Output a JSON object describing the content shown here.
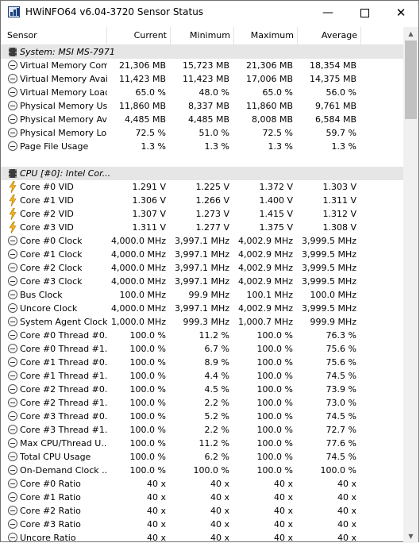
{
  "window": {
    "title": "HWiNFO64 v6.04-3720 Sensor Status",
    "minimize_glyph": "—",
    "close_glyph": "✕"
  },
  "columns": {
    "sensor": "Sensor",
    "current": "Current",
    "minimum": "Minimum",
    "maximum": "Maximum",
    "average": "Average"
  },
  "scroll_position_fraction": 0.0,
  "rows": [
    {
      "kind": "group",
      "icon": "chip-icon",
      "name": "System: MSI MS-7971"
    },
    {
      "kind": "sensor",
      "icon": "gauge-icon",
      "name": "Virtual Memory Com...",
      "current": "21,306 MB",
      "minimum": "15,723 MB",
      "maximum": "21,306 MB",
      "average": "18,354 MB"
    },
    {
      "kind": "sensor",
      "icon": "gauge-icon",
      "name": "Virtual Memory Avai...",
      "current": "11,423 MB",
      "minimum": "11,423 MB",
      "maximum": "17,006 MB",
      "average": "14,375 MB"
    },
    {
      "kind": "sensor",
      "icon": "gauge-icon",
      "name": "Virtual Memory Load",
      "current": "65.0 %",
      "minimum": "48.0 %",
      "maximum": "65.0 %",
      "average": "56.0 %"
    },
    {
      "kind": "sensor",
      "icon": "gauge-icon",
      "name": "Physical Memory Used",
      "current": "11,860 MB",
      "minimum": "8,337 MB",
      "maximum": "11,860 MB",
      "average": "9,761 MB"
    },
    {
      "kind": "sensor",
      "icon": "gauge-icon",
      "name": "Physical Memory Av...",
      "current": "4,485 MB",
      "minimum": "4,485 MB",
      "maximum": "8,008 MB",
      "average": "6,584 MB"
    },
    {
      "kind": "sensor",
      "icon": "gauge-icon",
      "name": "Physical Memory Load",
      "current": "72.5 %",
      "minimum": "51.0 %",
      "maximum": "72.5 %",
      "average": "59.7 %"
    },
    {
      "kind": "sensor",
      "icon": "gauge-icon",
      "name": "Page File Usage",
      "current": "1.3 %",
      "minimum": "1.3 %",
      "maximum": "1.3 %",
      "average": "1.3 %"
    },
    {
      "kind": "blank"
    },
    {
      "kind": "group",
      "icon": "chip-icon",
      "name": "CPU [#0]: Intel Cor..."
    },
    {
      "kind": "sensor",
      "icon": "voltage-icon",
      "name": "Core #0 VID",
      "current": "1.291 V",
      "minimum": "1.225 V",
      "maximum": "1.372 V",
      "average": "1.303 V"
    },
    {
      "kind": "sensor",
      "icon": "voltage-icon",
      "name": "Core #1 VID",
      "current": "1.306 V",
      "minimum": "1.266 V",
      "maximum": "1.400 V",
      "average": "1.311 V"
    },
    {
      "kind": "sensor",
      "icon": "voltage-icon",
      "name": "Core #2 VID",
      "current": "1.307 V",
      "minimum": "1.273 V",
      "maximum": "1.415 V",
      "average": "1.312 V"
    },
    {
      "kind": "sensor",
      "icon": "voltage-icon",
      "name": "Core #3 VID",
      "current": "1.311 V",
      "minimum": "1.277 V",
      "maximum": "1.375 V",
      "average": "1.308 V"
    },
    {
      "kind": "sensor",
      "icon": "gauge-icon",
      "name": "Core #0 Clock",
      "current": "4,000.0 MHz",
      "minimum": "3,997.1 MHz",
      "maximum": "4,002.9 MHz",
      "average": "3,999.5 MHz"
    },
    {
      "kind": "sensor",
      "icon": "gauge-icon",
      "name": "Core #1 Clock",
      "current": "4,000.0 MHz",
      "minimum": "3,997.1 MHz",
      "maximum": "4,002.9 MHz",
      "average": "3,999.5 MHz"
    },
    {
      "kind": "sensor",
      "icon": "gauge-icon",
      "name": "Core #2 Clock",
      "current": "4,000.0 MHz",
      "minimum": "3,997.1 MHz",
      "maximum": "4,002.9 MHz",
      "average": "3,999.5 MHz"
    },
    {
      "kind": "sensor",
      "icon": "gauge-icon",
      "name": "Core #3 Clock",
      "current": "4,000.0 MHz",
      "minimum": "3,997.1 MHz",
      "maximum": "4,002.9 MHz",
      "average": "3,999.5 MHz"
    },
    {
      "kind": "sensor",
      "icon": "gauge-icon",
      "name": "Bus Clock",
      "current": "100.0 MHz",
      "minimum": "99.9 MHz",
      "maximum": "100.1 MHz",
      "average": "100.0 MHz"
    },
    {
      "kind": "sensor",
      "icon": "gauge-icon",
      "name": "Uncore Clock",
      "current": "4,000.0 MHz",
      "minimum": "3,997.1 MHz",
      "maximum": "4,002.9 MHz",
      "average": "3,999.5 MHz"
    },
    {
      "kind": "sensor",
      "icon": "gauge-icon",
      "name": "System Agent Clock",
      "current": "1,000.0 MHz",
      "minimum": "999.3 MHz",
      "maximum": "1,000.7 MHz",
      "average": "999.9 MHz"
    },
    {
      "kind": "sensor",
      "icon": "gauge-icon",
      "name": "Core #0 Thread #0...",
      "current": "100.0 %",
      "minimum": "11.2 %",
      "maximum": "100.0 %",
      "average": "76.3 %"
    },
    {
      "kind": "sensor",
      "icon": "gauge-icon",
      "name": "Core #0 Thread #1...",
      "current": "100.0 %",
      "minimum": "6.7 %",
      "maximum": "100.0 %",
      "average": "75.6 %"
    },
    {
      "kind": "sensor",
      "icon": "gauge-icon",
      "name": "Core #1 Thread #0...",
      "current": "100.0 %",
      "minimum": "8.9 %",
      "maximum": "100.0 %",
      "average": "75.6 %"
    },
    {
      "kind": "sensor",
      "icon": "gauge-icon",
      "name": "Core #1 Thread #1...",
      "current": "100.0 %",
      "minimum": "4.4 %",
      "maximum": "100.0 %",
      "average": "74.5 %"
    },
    {
      "kind": "sensor",
      "icon": "gauge-icon",
      "name": "Core #2 Thread #0...",
      "current": "100.0 %",
      "minimum": "4.5 %",
      "maximum": "100.0 %",
      "average": "73.9 %"
    },
    {
      "kind": "sensor",
      "icon": "gauge-icon",
      "name": "Core #2 Thread #1...",
      "current": "100.0 %",
      "minimum": "2.2 %",
      "maximum": "100.0 %",
      "average": "73.0 %"
    },
    {
      "kind": "sensor",
      "icon": "gauge-icon",
      "name": "Core #3 Thread #0...",
      "current": "100.0 %",
      "minimum": "5.2 %",
      "maximum": "100.0 %",
      "average": "74.5 %"
    },
    {
      "kind": "sensor",
      "icon": "gauge-icon",
      "name": "Core #3 Thread #1...",
      "current": "100.0 %",
      "minimum": "2.2 %",
      "maximum": "100.0 %",
      "average": "72.7 %"
    },
    {
      "kind": "sensor",
      "icon": "gauge-icon",
      "name": "Max CPU/Thread U...",
      "current": "100.0 %",
      "minimum": "11.2 %",
      "maximum": "100.0 %",
      "average": "77.6 %"
    },
    {
      "kind": "sensor",
      "icon": "gauge-icon",
      "name": "Total CPU Usage",
      "current": "100.0 %",
      "minimum": "6.2 %",
      "maximum": "100.0 %",
      "average": "74.5 %"
    },
    {
      "kind": "sensor",
      "icon": "gauge-icon",
      "name": "On-Demand Clock ...",
      "current": "100.0 %",
      "minimum": "100.0 %",
      "maximum": "100.0 %",
      "average": "100.0 %"
    },
    {
      "kind": "sensor",
      "icon": "gauge-icon",
      "name": "Core #0 Ratio",
      "current": "40 x",
      "minimum": "40 x",
      "maximum": "40 x",
      "average": "40 x"
    },
    {
      "kind": "sensor",
      "icon": "gauge-icon",
      "name": "Core #1 Ratio",
      "current": "40 x",
      "minimum": "40 x",
      "maximum": "40 x",
      "average": "40 x"
    },
    {
      "kind": "sensor",
      "icon": "gauge-icon",
      "name": "Core #2 Ratio",
      "current": "40 x",
      "minimum": "40 x",
      "maximum": "40 x",
      "average": "40 x"
    },
    {
      "kind": "sensor",
      "icon": "gauge-icon",
      "name": "Core #3 Ratio",
      "current": "40 x",
      "minimum": "40 x",
      "maximum": "40 x",
      "average": "40 x"
    },
    {
      "kind": "sensor",
      "icon": "gauge-icon",
      "name": "Uncore Ratio",
      "current": "40 x",
      "minimum": "40 x",
      "maximum": "40 x",
      "average": "40 x"
    }
  ]
}
